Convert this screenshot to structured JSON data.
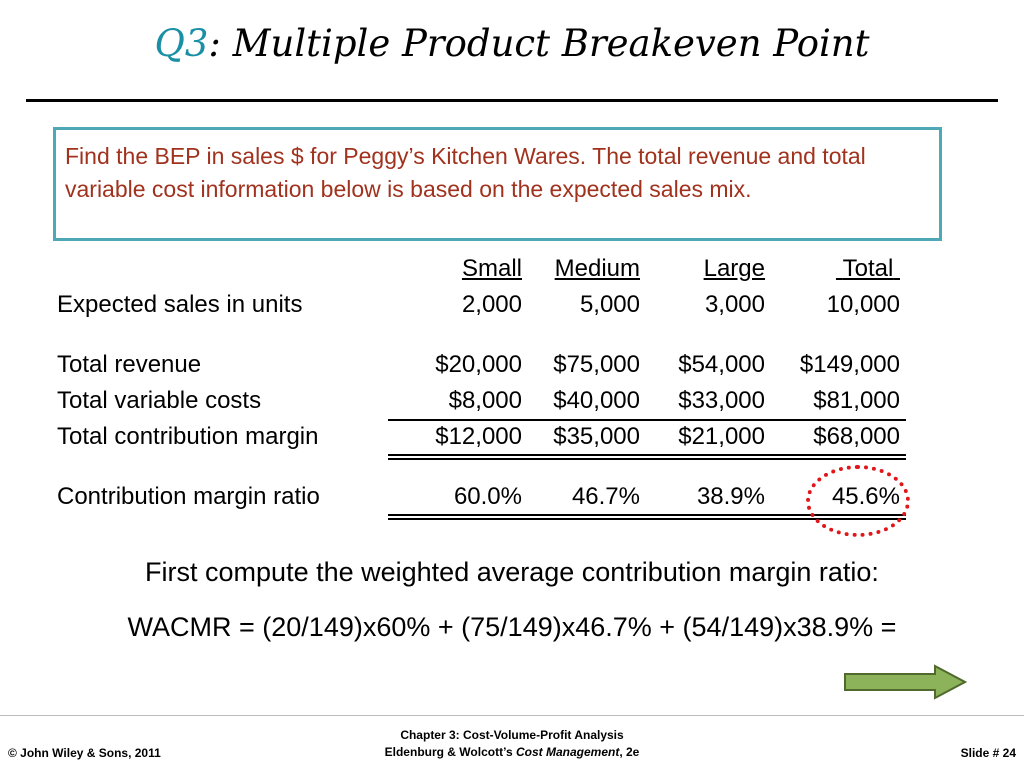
{
  "title": {
    "prefix": "Q3",
    "text": ": Multiple Product Breakeven Point"
  },
  "problem_text": "Find the BEP in sales $ for Peggy’s Kitchen Wares. The total revenue and total variable cost information below is based on the expected sales mix.",
  "table": {
    "headers": [
      "Small",
      "Medium",
      "Large",
      "Total"
    ],
    "rows": [
      {
        "label": "Expected sales in units",
        "values": [
          "2,000",
          "5,000",
          "3,000",
          "10,000"
        ]
      },
      {
        "label": "Total revenue",
        "values": [
          "$20,000",
          "$75,000",
          "$54,000",
          "$149,000"
        ]
      },
      {
        "label": "Total variable costs",
        "values": [
          "$8,000",
          "$40,000",
          "$33,000",
          "$81,000"
        ]
      },
      {
        "label": "Total contribution margin",
        "values": [
          "$12,000",
          "$35,000",
          "$21,000",
          "$68,000"
        ]
      },
      {
        "label": "Contribution margin ratio",
        "values": [
          "60.0%",
          "46.7%",
          "38.9%",
          "45.6%"
        ]
      }
    ]
  },
  "highlight": {
    "color": "#e0161b",
    "target": "45.6%"
  },
  "instruction": "First compute the weighted average contribution margin ratio:",
  "formula": "WACMR = (20/149)x60% + (75/149)x46.7% + (54/149)x38.9% =",
  "next_arrow": {
    "icon": "right-arrow-icon",
    "color": "#8cb35a"
  },
  "footer": {
    "left": "© John Wiley & Sons, 2011",
    "center_line1": "Chapter 3: Cost-Volume-Profit Analysis",
    "center_line2_pre": "Eldenburg & Wolcott’s ",
    "center_line2_italic": "Cost Management",
    "center_line2_post": ", 2e",
    "right": "Slide #  24"
  },
  "colors": {
    "title_accent": "#1a8fa6",
    "box_border": "#4ea8b5",
    "box_text": "#a0321e"
  }
}
